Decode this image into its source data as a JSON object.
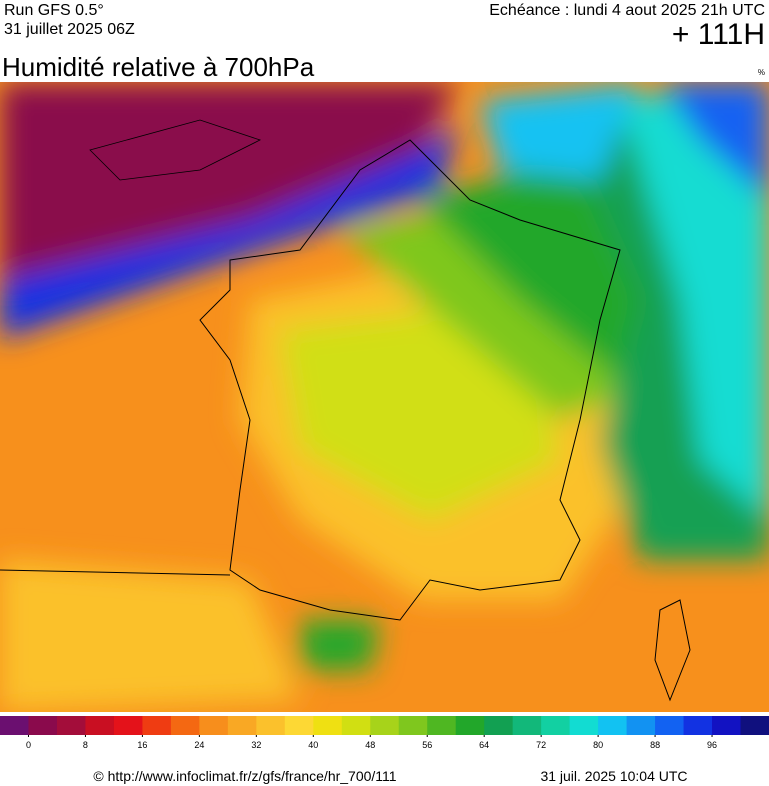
{
  "header": {
    "run": "Run GFS 0.5°",
    "date": "31 juillet 2025 06Z",
    "echeance": "Echéance : lundi 4 aout 2025 21h UTC",
    "lead": "+ 111H",
    "title": "Humidité relative à 700hPa",
    "unit": "%"
  },
  "colorbar": {
    "xlim": [
      -4,
      104
    ],
    "colors": [
      "#6b0f70",
      "#8a0a4c",
      "#a30d3a",
      "#c90f22",
      "#e4121a",
      "#ef3c12",
      "#f46812",
      "#f78e1c",
      "#f9a824",
      "#fbc12c",
      "#fdd834",
      "#efe012",
      "#d1df12",
      "#a7d31a",
      "#7fc71e",
      "#4fb722",
      "#22a72a",
      "#12a052",
      "#12b87a",
      "#12d0a2",
      "#12dcd2",
      "#12c2f2",
      "#1292f2",
      "#1262f2",
      "#1232e2",
      "#1212c2",
      "#10107e"
    ],
    "ticks": [
      0,
      8,
      16,
      24,
      32,
      40,
      48,
      56,
      64,
      72,
      80,
      88,
      96
    ]
  },
  "footer": {
    "source": "© http://www.infoclimat.fr/z/gfs/france/hr_700/111",
    "generated": "31 juil. 2025 10:04 UTC"
  }
}
